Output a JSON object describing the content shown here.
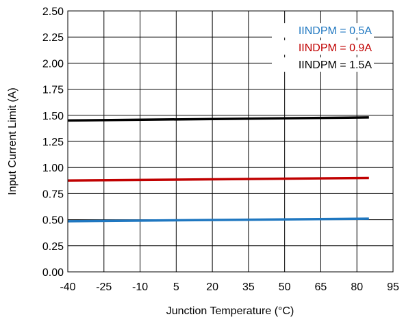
{
  "chart_data": {
    "type": "line",
    "xlabel": "Junction Temperature (°C)",
    "ylabel": "Input Current Limit (A)",
    "xlim": [
      -40,
      95
    ],
    "ylim": [
      0,
      2.5
    ],
    "x_ticks": [
      "-40",
      "-25",
      "-10",
      "5",
      "20",
      "35",
      "50",
      "65",
      "80",
      "95"
    ],
    "y_ticks": [
      "0.00",
      "0.25",
      "0.50",
      "0.75",
      "1.00",
      "1.25",
      "1.50",
      "1.75",
      "2.00",
      "2.25",
      "2.50"
    ],
    "grid": true,
    "legend_position": "top-right",
    "series": [
      {
        "name": "IINDPM = 0.5A",
        "color": "#1f77c0",
        "x": [
          -40,
          85
        ],
        "y": [
          0.485,
          0.51
        ]
      },
      {
        "name": "IINDPM = 0.9A",
        "color": "#c00000",
        "x": [
          -40,
          85
        ],
        "y": [
          0.875,
          0.9
        ]
      },
      {
        "name": "IINDPM = 1.5A",
        "color": "#000000",
        "x": [
          -40,
          85
        ],
        "y": [
          1.45,
          1.48
        ]
      }
    ]
  }
}
